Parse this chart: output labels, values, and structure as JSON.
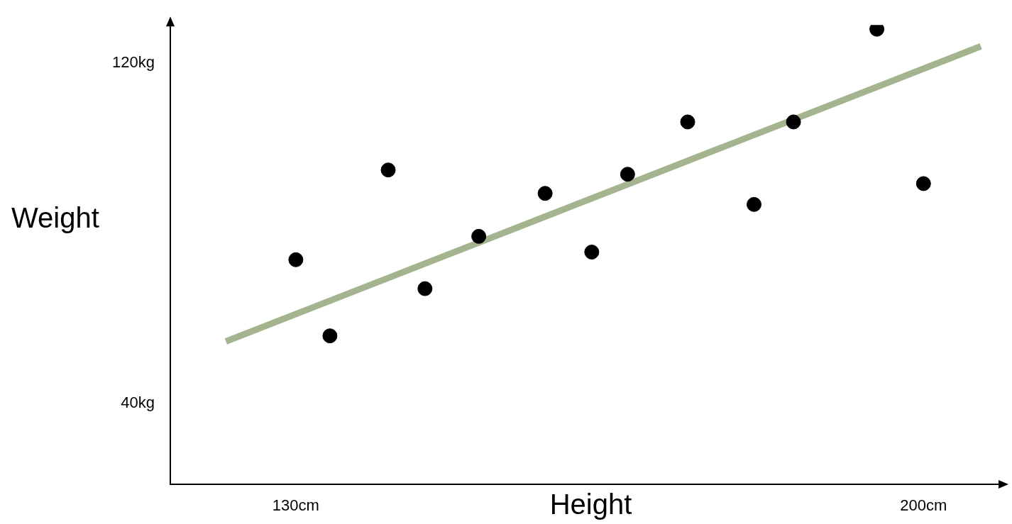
{
  "chart_data": {
    "type": "scatter",
    "xlabel": "Height",
    "ylabel": "Weight",
    "xlim": [
      116,
      209
    ],
    "ylim": [
      21,
      129
    ],
    "xticks": [
      {
        "value": 130,
        "label": "130cm"
      },
      {
        "value": 200,
        "label": "200cm"
      }
    ],
    "yticks": [
      {
        "value": 40,
        "label": "40kg"
      },
      {
        "value": 120,
        "label": "120kg"
      }
    ],
    "series": [
      {
        "marker": "circle",
        "color": "#000000",
        "x": [
          130,
          133.8,
          140.3,
          144.4,
          150.4,
          157.8,
          163.0,
          167.0,
          173.7,
          181.1,
          185.5,
          194.8,
          200
        ],
        "values": [
          73.8,
          55.9,
          94.9,
          67.0,
          79.3,
          89.4,
          75.6,
          93.9,
          106.2,
          86.8,
          106.2,
          128.0,
          91.7
        ]
      },
      {
        "type": "line",
        "marker": "none",
        "color": "#a3b48f",
        "x": [
          122.2,
          206.4
        ],
        "values": [
          54.6,
          124.0
        ]
      }
    ]
  }
}
